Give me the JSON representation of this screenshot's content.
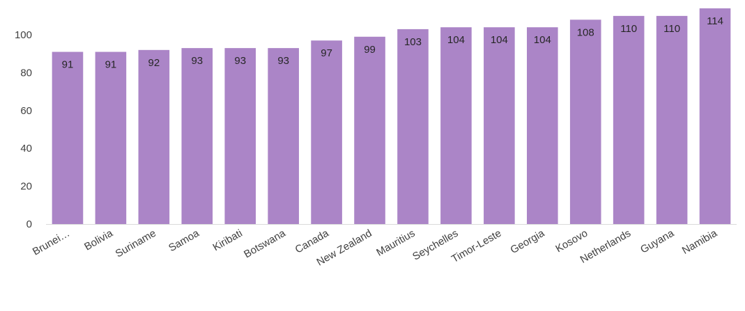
{
  "chart_data": {
    "type": "bar",
    "title": "",
    "xlabel": "",
    "ylabel": "",
    "categories": [
      "Brunei…",
      "Bolivia",
      "Suriname",
      "Samoa",
      "Kiribati",
      "Botswana",
      "Canada",
      "New Zealand",
      "Mauritius",
      "Seychelles",
      "Timor-Leste",
      "Georgia",
      "Kosovo",
      "Netherlands",
      "Guyana",
      "Namibia"
    ],
    "values": [
      91,
      91,
      92,
      93,
      93,
      93,
      97,
      99,
      103,
      104,
      104,
      104,
      108,
      110,
      110,
      114
    ],
    "data_labels": [
      "91",
      "91",
      "92",
      "93",
      "93",
      "93",
      "97",
      "99",
      "103",
      "104",
      "104",
      "104",
      "108",
      "110",
      "110",
      "114"
    ],
    "ylim": [
      0,
      114
    ],
    "yticks": [
      0,
      20,
      40,
      60,
      80,
      100
    ],
    "ytick_labels": [
      "0",
      "20",
      "40",
      "60",
      "80",
      "100"
    ],
    "grid": false,
    "legend": "none",
    "bar_color": "#AB85C7",
    "axis_color": "#D9D9D9",
    "text_color": "#404040"
  }
}
